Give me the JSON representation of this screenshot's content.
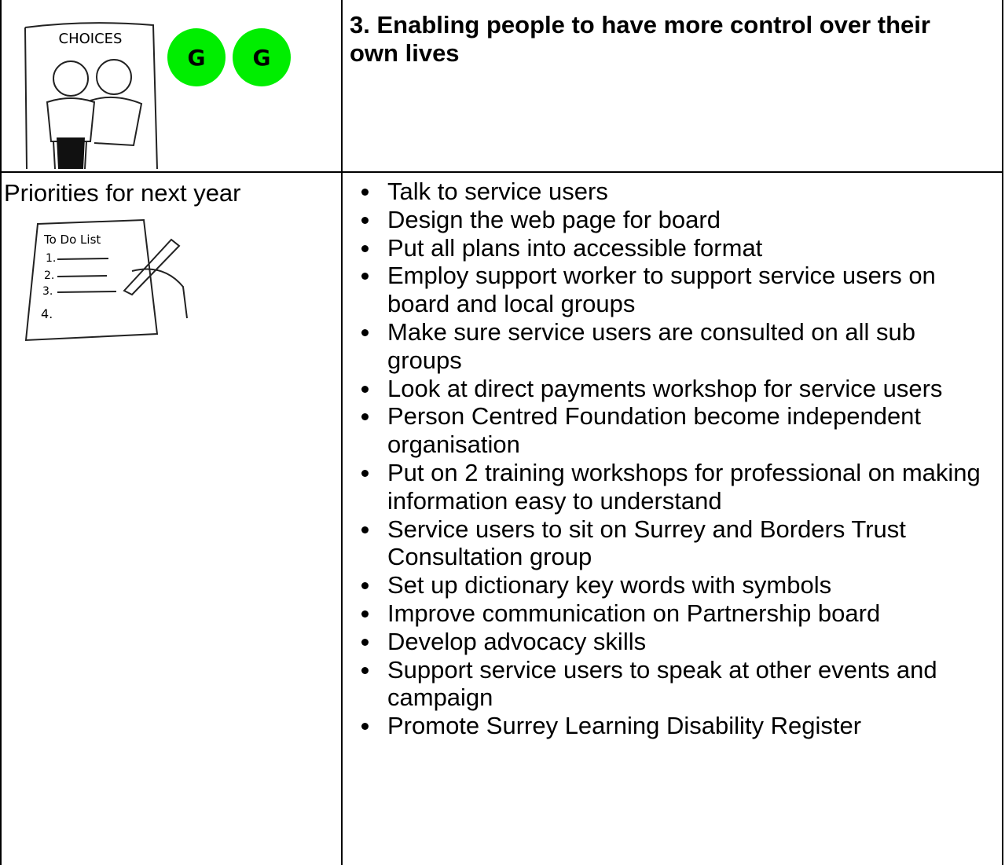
{
  "illustration_top": {
    "sign": "CHOICES",
    "badges": [
      "G",
      "G"
    ]
  },
  "section": {
    "title": "3. Enabling people to have more control over their own lives"
  },
  "priorities": {
    "label": "Priorities for next year",
    "illustration": {
      "heading": "To Do List",
      "lines": [
        "1.",
        "2.",
        "3.",
        "4."
      ]
    },
    "items": [
      "Talk to service users",
      "Design the web page for board",
      "Put all plans into accessible format",
      "Employ support worker to support service users on board and local groups",
      "Make sure service users are consulted on all sub groups",
      "Look at direct payments workshop for service users",
      "Person Centred Foundation become independent organisation",
      "Put on 2 training workshops for professional on making information easy to understand",
      "Service users to sit on Surrey and Borders Trust Consultation group",
      "Set up dictionary key words with symbols",
      "Improve communication on Partnership board",
      "Develop advocacy skills",
      "Support service users to speak at other events and campaign",
      "Promote Surrey Learning Disability Register"
    ]
  }
}
